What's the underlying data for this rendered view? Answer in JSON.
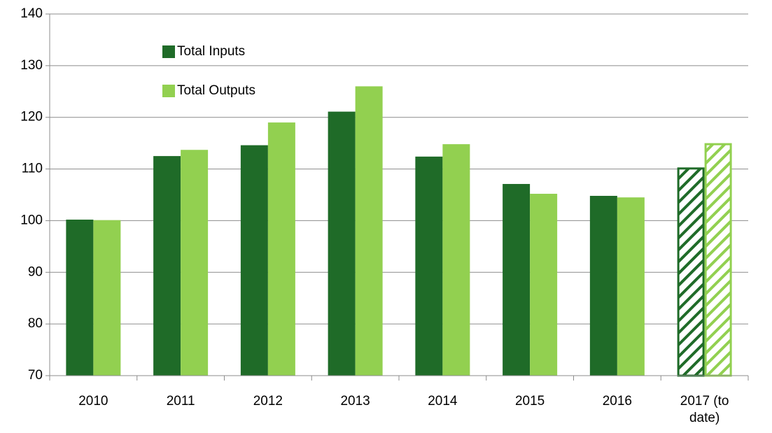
{
  "chart_data": {
    "type": "bar",
    "categories": [
      "2010",
      "2011",
      "2012",
      "2013",
      "2014",
      "2015",
      "2016",
      "2017 (to date)"
    ],
    "series": [
      {
        "name": "Total Inputs",
        "color": "#1f6b28",
        "values": [
          100.2,
          112.5,
          114.6,
          121.1,
          112.4,
          107.1,
          104.8,
          110.1
        ],
        "hatch": [
          false,
          false,
          false,
          false,
          false,
          false,
          false,
          true
        ]
      },
      {
        "name": "Total Outputs",
        "color": "#92d050",
        "values": [
          100.1,
          113.7,
          119.0,
          126.0,
          114.8,
          105.2,
          104.5,
          114.8
        ],
        "hatch": [
          false,
          false,
          false,
          false,
          false,
          false,
          false,
          true
        ]
      }
    ],
    "ylim": [
      70,
      140
    ],
    "yticks": [
      70,
      80,
      90,
      100,
      110,
      120,
      130,
      140
    ],
    "grid": true,
    "legend": "top-left"
  }
}
